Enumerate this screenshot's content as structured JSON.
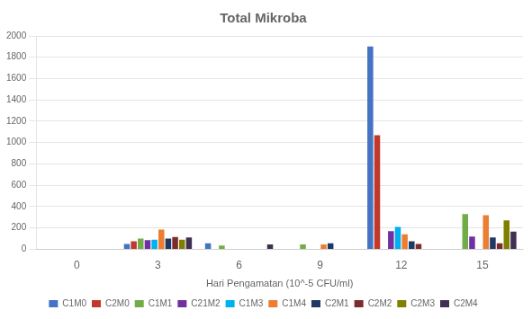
{
  "chart_data": {
    "type": "bar",
    "title": "Total Mikroba",
    "xlabel": "Hari Pengamatan (10^-5 CFU/ml)",
    "categories": [
      "0",
      "3",
      "6",
      "9",
      "12",
      "15"
    ],
    "series": [
      {
        "name": "C1M0",
        "color": "#4472C4",
        "values": [
          0,
          50,
          55,
          0,
          1900,
          0
        ]
      },
      {
        "name": "C2M0",
        "color": "#C0392B",
        "values": [
          0,
          75,
          0,
          0,
          1070,
          0
        ]
      },
      {
        "name": "C1M1",
        "color": "#70AD47",
        "values": [
          0,
          100,
          35,
          45,
          0,
          330
        ]
      },
      {
        "name": "C21M2",
        "color": "#7030A0",
        "values": [
          0,
          85,
          0,
          0,
          170,
          120
        ]
      },
      {
        "name": "C1M3",
        "color": "#00B0F0",
        "values": [
          0,
          90,
          0,
          0,
          210,
          0
        ]
      },
      {
        "name": "C1M4",
        "color": "#ED7D31",
        "values": [
          0,
          185,
          0,
          45,
          140,
          320
        ]
      },
      {
        "name": "C2M1",
        "color": "#1F3864",
        "values": [
          0,
          100,
          0,
          55,
          75,
          110
        ]
      },
      {
        "name": "C2M2",
        "color": "#7B2C2C",
        "values": [
          0,
          115,
          0,
          0,
          50,
          55
        ]
      },
      {
        "name": "C2M3",
        "color": "#808000",
        "values": [
          0,
          90,
          0,
          0,
          0,
          270
        ]
      },
      {
        "name": "C2M4",
        "color": "#403152",
        "values": [
          0,
          110,
          45,
          0,
          0,
          165
        ]
      }
    ],
    "ylim": [
      0,
      2000
    ],
    "yticks": [
      0,
      200,
      400,
      600,
      800,
      1000,
      1200,
      1400,
      1600,
      1800,
      2000
    ],
    "grid": true,
    "legend": "bottom"
  }
}
